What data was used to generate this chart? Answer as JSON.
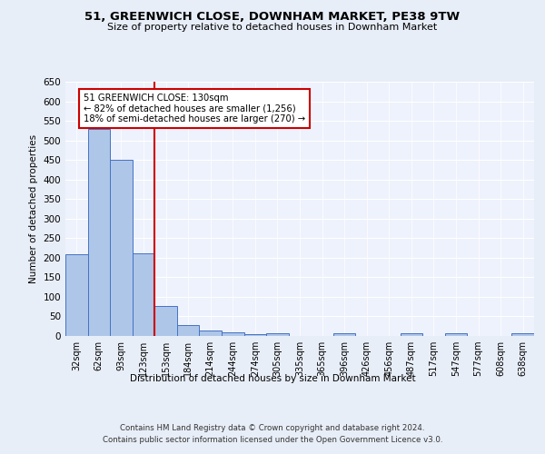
{
  "title1": "51, GREENWICH CLOSE, DOWNHAM MARKET, PE38 9TW",
  "title2": "Size of property relative to detached houses in Downham Market",
  "xlabel": "Distribution of detached houses by size in Downham Market",
  "ylabel": "Number of detached properties",
  "categories": [
    "32sqm",
    "62sqm",
    "93sqm",
    "123sqm",
    "153sqm",
    "184sqm",
    "214sqm",
    "244sqm",
    "274sqm",
    "305sqm",
    "335sqm",
    "365sqm",
    "396sqm",
    "426sqm",
    "456sqm",
    "487sqm",
    "517sqm",
    "547sqm",
    "577sqm",
    "608sqm",
    "638sqm"
  ],
  "values": [
    210,
    530,
    450,
    212,
    77,
    27,
    15,
    10,
    5,
    7,
    0,
    0,
    6,
    0,
    0,
    7,
    0,
    6,
    0,
    0,
    6
  ],
  "bar_color": "#aec6e8",
  "bar_edge_color": "#4472c4",
  "vline_x": 3.5,
  "vline_color": "#cc0000",
  "annotation_text": "51 GREENWICH CLOSE: 130sqm\n← 82% of detached houses are smaller (1,256)\n18% of semi-detached houses are larger (270) →",
  "annotation_box_color": "#ffffff",
  "annotation_box_edge": "#cc0000",
  "ylim": [
    0,
    650
  ],
  "yticks": [
    0,
    50,
    100,
    150,
    200,
    250,
    300,
    350,
    400,
    450,
    500,
    550,
    600,
    650
  ],
  "footer1": "Contains HM Land Registry data © Crown copyright and database right 2024.",
  "footer2": "Contains public sector information licensed under the Open Government Licence v3.0.",
  "bg_color": "#e8eef8",
  "plot_bg_color": "#eef2fc"
}
